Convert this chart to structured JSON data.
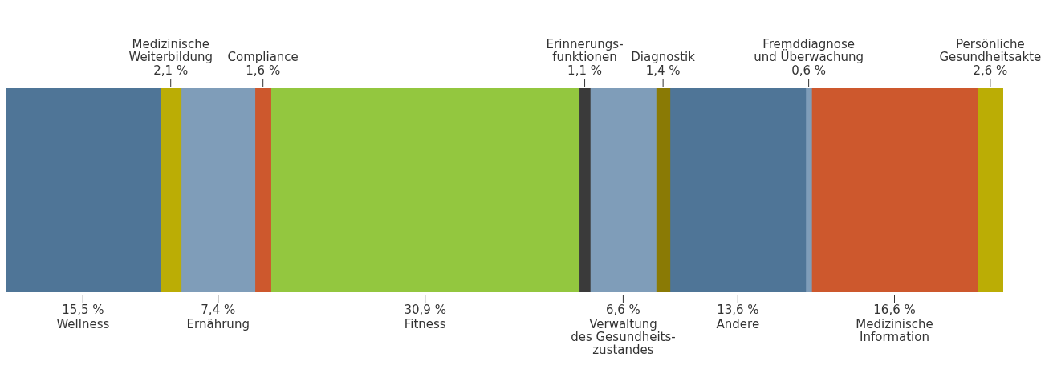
{
  "chart_data": {
    "type": "bar",
    "orientation": "horizontal",
    "stacked": true,
    "categories": [
      null
    ],
    "xlim": [
      0,
      100
    ],
    "tick_labels": false,
    "legend": false,
    "series": [
      {
        "name": "Wellness",
        "color": "#4f7597",
        "values": [
          15.5
        ],
        "value_labels": [
          "15,5 %"
        ]
      },
      {
        "name": "Medizinische\nWeiterbildung",
        "color": "#bbad05",
        "values": [
          2.1
        ],
        "value_labels": [
          "2,1 %"
        ]
      },
      {
        "name": "Ernährung",
        "color": "#7f9db9",
        "values": [
          7.4
        ],
        "value_labels": [
          "7,4 %"
        ]
      },
      {
        "name": "Compliance",
        "color": "#cd582d",
        "values": [
          1.6
        ],
        "value_labels": [
          "1,6 %"
        ]
      },
      {
        "name": "Fitness",
        "color": "#93c73f",
        "values": [
          30.9
        ],
        "value_labels": [
          "30,9 %"
        ]
      },
      {
        "name": "Erinnerungs-\nfunktionen",
        "color": "#3a3a3a",
        "values": [
          1.1
        ],
        "value_labels": [
          "1,1 %"
        ]
      },
      {
        "name": "Verwaltung\ndes Gesundheits-\nzustandes",
        "color": "#7f9db9",
        "values": [
          6.6
        ],
        "value_labels": [
          "6,6 %"
        ]
      },
      {
        "name": "Diagnostik",
        "color": "#8a7a05",
        "values": [
          1.4
        ],
        "value_labels": [
          "1,4 %"
        ]
      },
      {
        "name": "Andere",
        "color": "#4f7597",
        "values": [
          13.6
        ],
        "value_labels": [
          "13,6 %"
        ]
      },
      {
        "name": "Fremddiagnose\nund Überwachung",
        "color": "#7f9db9",
        "values": [
          0.6
        ],
        "value_labels": [
          "0,6 %"
        ]
      },
      {
        "name": "Medizinische\nInformation",
        "color": "#cd582d",
        "values": [
          16.6
        ],
        "value_labels": [
          "16,6 %"
        ]
      },
      {
        "name": "Persönliche\nGesundheitsakte",
        "color": "#bbad05",
        "values": [
          2.6
        ],
        "value_labels": [
          "2,6 %"
        ]
      }
    ]
  }
}
